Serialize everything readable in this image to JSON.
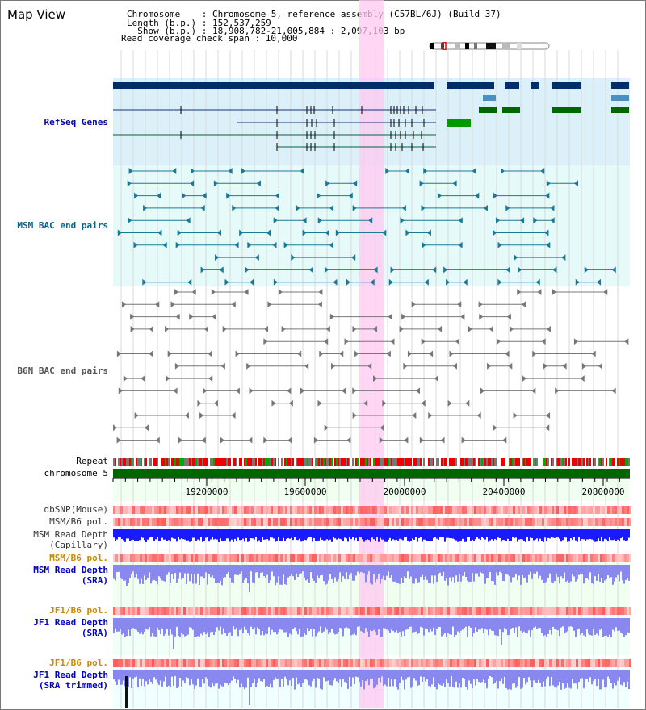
{
  "header": {
    "title": "Map View",
    "chromosome_line": "Chromosome    : Chromosome 5, reference assembly (C57BL/6J) (Build 37)",
    "length_line": "Length (b.p.) : 152,537,259",
    "show_line": "  Show (b.p.) : 18,908,782-21,005,884 : 2,097,103 bp",
    "coverage_line": "Read coverage check span : 10,000"
  },
  "tracks": {
    "refseq": "RefSeq Genes",
    "msm_bac": "MSM BAC end pairs",
    "b6n_bac": "B6N BAC end pairs",
    "repeat": "Repeat",
    "chrom": "chromosome 5",
    "dbsnp": "dbSNP(Mouse)",
    "msm_b6_pol_1": "MSM/B6 pol.",
    "msm_depth_cap_1": "MSM Read Depth",
    "msm_depth_cap_2": "(Capillary)",
    "msm_b6_pol_2": "MSM/B6 pol.",
    "msm_depth_sra_1": "MSM Read Depth",
    "msm_depth_sra_2": "(SRA)",
    "jf1_b6_pol_1": "JF1/B6 pol.",
    "jf1_depth_sra_1": "JF1 Read Depth",
    "jf1_depth_sra_2": "(SRA)",
    "jf1_b6_pol_2": "JF1/B6 pol.",
    "jf1_depth_trim_1": "JF1 Read Depth",
    "jf1_depth_trim_2": "(SRA trimmed)"
  },
  "axis": {
    "ticks": [
      "19200000",
      "19600000",
      "20000000",
      "20400000",
      "20800000"
    ]
  },
  "colors": {
    "refseq_label": "#0000aa",
    "msm_label": "#006688",
    "b6n_label": "#555555",
    "jf1_label": "#cc8800",
    "depth_label": "#0000cc",
    "highlight": "#ffc8f0"
  }
}
